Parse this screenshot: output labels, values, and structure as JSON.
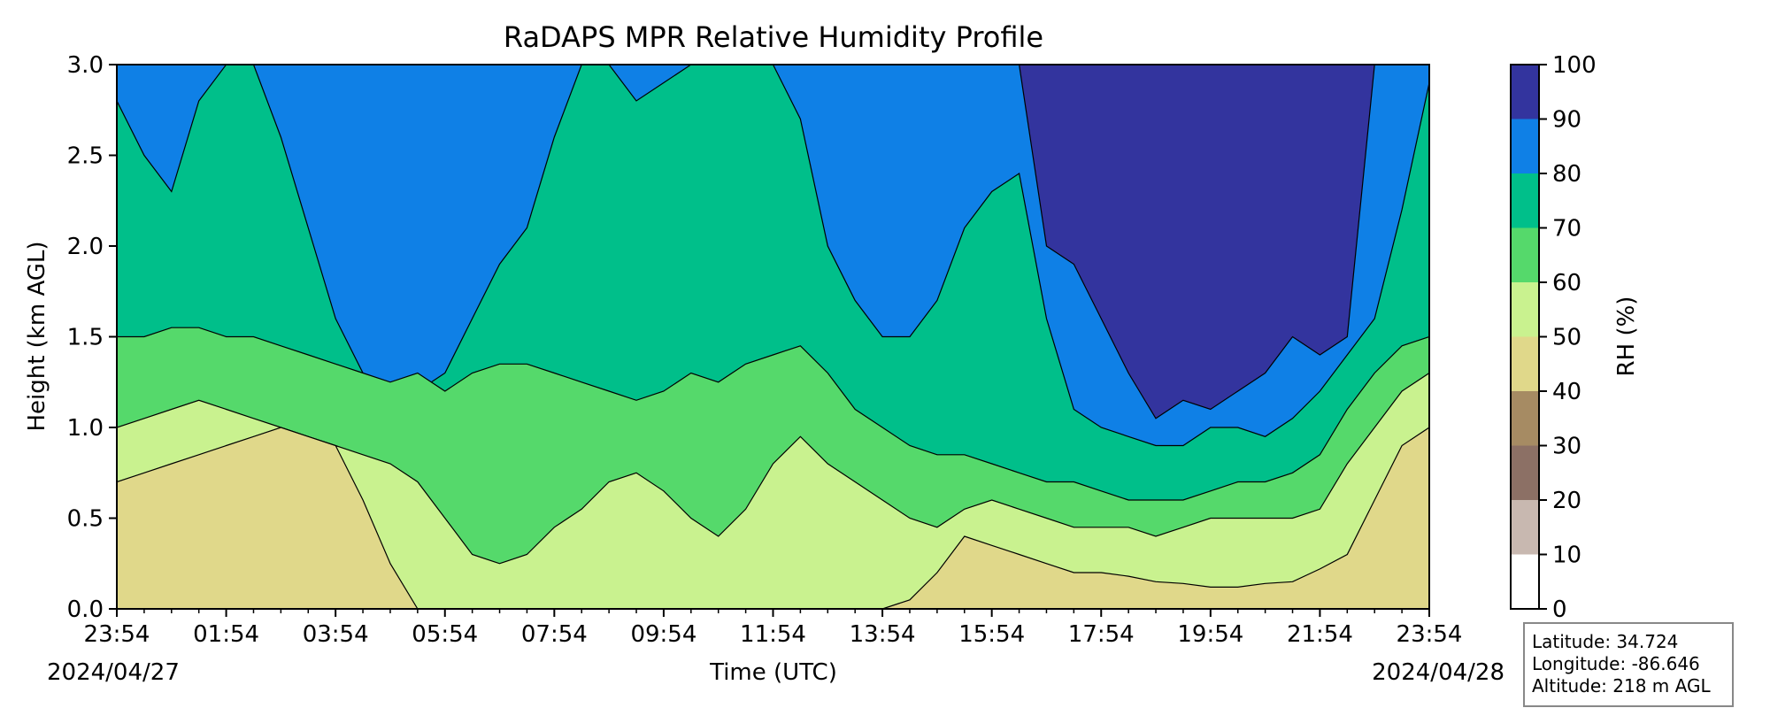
{
  "chart_data": {
    "type": "heatmap",
    "title": "RaDAPS MPR Relative Humidity Profile",
    "xlabel": "Time (UTC)",
    "ylabel": "Height (km AGL)",
    "colorbar_label": "RH (%)",
    "x_tick_labels": [
      "23:54",
      "01:54",
      "03:54",
      "05:54",
      "07:54",
      "09:54",
      "11:54",
      "13:54",
      "15:54",
      "17:54",
      "19:54",
      "21:54",
      "23:54"
    ],
    "start_date": "2024/04/27",
    "end_date": "2024/04/28",
    "ylim": [
      0,
      3
    ],
    "y_ticks": [
      "0.0",
      "0.5",
      "1.0",
      "1.5",
      "2.0",
      "2.5",
      "3.0"
    ],
    "levels": [
      0,
      10,
      20,
      30,
      40,
      50,
      60,
      70,
      80,
      90,
      100
    ],
    "level_colors": [
      "#ffffff",
      "#c8b8b0",
      "#8c7065",
      "#a68b63",
      "#e0d88a",
      "#c9f28f",
      "#55d96b",
      "#00bf8a",
      "#0f80e6",
      "#33349e"
    ],
    "x_hours": [
      0,
      0.5,
      1,
      1.5,
      2,
      2.5,
      3,
      3.5,
      4,
      4.5,
      5,
      5.5,
      6,
      6.5,
      7,
      7.5,
      8,
      8.5,
      9,
      9.5,
      10,
      10.5,
      11,
      11.5,
      12,
      12.5,
      13,
      13.5,
      14,
      14.5,
      15,
      15.5,
      16,
      16.5,
      17,
      17.5,
      18,
      18.5,
      19,
      19.5,
      20,
      20.5,
      21,
      21.5,
      22,
      22.5,
      23,
      23.5,
      24
    ],
    "contour_heights_km": {
      "rh_50": [
        0.7,
        0.75,
        0.8,
        0.85,
        0.9,
        0.95,
        1.0,
        0.95,
        0.9,
        0.6,
        0.25,
        0,
        0,
        0,
        0,
        0,
        0,
        0,
        0,
        0,
        0,
        0,
        0,
        0,
        0,
        0,
        0,
        0,
        0,
        0.05,
        0.2,
        0.4,
        0.35,
        0.3,
        0.25,
        0.2,
        0.2,
        0.18,
        0.15,
        0.14,
        0.12,
        0.12,
        0.14,
        0.15,
        0.22,
        0.3,
        0.6,
        0.9,
        1.0
      ],
      "rh_60": [
        1.0,
        1.05,
        1.1,
        1.15,
        1.1,
        1.05,
        1.0,
        0.95,
        0.9,
        0.85,
        0.8,
        0.7,
        0.5,
        0.3,
        0.25,
        0.3,
        0.45,
        0.55,
        0.7,
        0.75,
        0.65,
        0.5,
        0.4,
        0.55,
        0.8,
        0.95,
        0.8,
        0.7,
        0.6,
        0.5,
        0.45,
        0.55,
        0.6,
        0.55,
        0.5,
        0.45,
        0.45,
        0.45,
        0.4,
        0.45,
        0.5,
        0.5,
        0.5,
        0.5,
        0.55,
        0.8,
        1.0,
        1.2,
        1.3
      ],
      "rh_70": [
        1.5,
        1.5,
        1.55,
        1.55,
        1.5,
        1.5,
        1.45,
        1.4,
        1.35,
        1.3,
        1.25,
        1.3,
        1.2,
        1.3,
        1.35,
        1.35,
        1.3,
        1.25,
        1.2,
        1.15,
        1.2,
        1.3,
        1.25,
        1.35,
        1.4,
        1.45,
        1.3,
        1.1,
        1.0,
        0.9,
        0.85,
        0.85,
        0.8,
        0.75,
        0.7,
        0.7,
        0.65,
        0.6,
        0.6,
        0.6,
        0.65,
        0.7,
        0.7,
        0.75,
        0.85,
        1.1,
        1.3,
        1.45,
        1.5
      ],
      "rh_80": [
        2.8,
        2.5,
        2.3,
        2.8,
        3.0,
        3.0,
        2.6,
        2.1,
        1.6,
        1.3,
        1.1,
        1.2,
        1.3,
        1.6,
        1.9,
        2.1,
        2.6,
        3.0,
        3.0,
        2.8,
        2.9,
        3.0,
        3.0,
        3.0,
        3.0,
        2.7,
        2.0,
        1.7,
        1.5,
        1.5,
        1.7,
        2.1,
        2.3,
        2.4,
        1.6,
        1.1,
        1.0,
        0.95,
        0.9,
        0.9,
        1.0,
        1.0,
        0.95,
        1.05,
        1.2,
        1.4,
        1.6,
        2.2,
        2.9
      ],
      "rh_90": [
        3.0,
        3.0,
        3.0,
        3.0,
        3.0,
        3.0,
        3.0,
        3.0,
        3.0,
        3.0,
        3.0,
        3.0,
        3.0,
        3.0,
        3.0,
        3.0,
        3.0,
        3.0,
        3.0,
        3.0,
        3.0,
        3.0,
        3.0,
        3.0,
        3.0,
        3.0,
        3.0,
        3.0,
        3.0,
        3.0,
        3.0,
        3.0,
        3.0,
        3.0,
        2.0,
        1.9,
        1.6,
        1.3,
        1.05,
        1.15,
        1.1,
        1.2,
        1.3,
        1.5,
        1.4,
        1.5,
        3.0,
        3.0,
        3.0
      ]
    }
  },
  "info_box": {
    "latitude": "Latitude: 34.724",
    "longitude": "Longitude: -86.646",
    "altitude": "Altitude: 218 m AGL"
  }
}
